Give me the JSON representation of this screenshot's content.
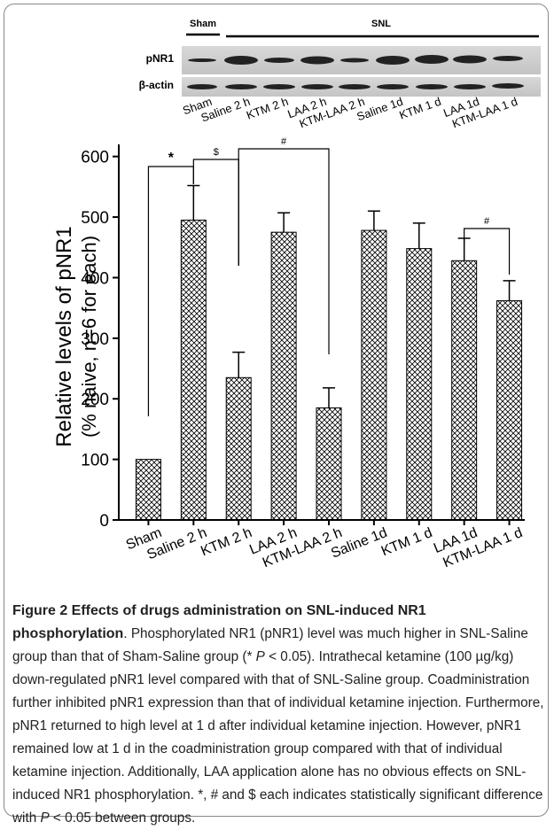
{
  "blot": {
    "group_labels": [
      "Sham",
      "SNL"
    ],
    "row_labels": [
      "pNR1",
      "β-actin"
    ]
  },
  "chart_data": {
    "type": "bar",
    "y_label": [
      "Relative levels of pNR1",
      "(% naive, n=6 for each)"
    ],
    "categories": [
      "Sham",
      "Saline 2 h",
      "KTM 2 h",
      "LAA 2 h",
      "KTM-LAA 2 h",
      "Saline 1d",
      "KTM 1 d",
      "LAA 1d",
      "KTM-LAA 1 d"
    ],
    "values": [
      100,
      495,
      235,
      475,
      185,
      478,
      448,
      428,
      362
    ],
    "errors": [
      null,
      57,
      42,
      32,
      33,
      32,
      42,
      37,
      33
    ],
    "color": "#000000",
    "ylim": [
      0,
      620
    ],
    "yticks": [
      0,
      100,
      200,
      300,
      400,
      500,
      600
    ],
    "annotations": [
      "*",
      "$",
      "#",
      "#"
    ]
  },
  "caption": {
    "title": "Figure 2 Effects of drugs administration on SNL-induced NR1 phosphorylation",
    "body": [
      ". Phosphorylated NR1 (pNR1) level was much higher in SNL-Saline group than that of Sham-Saline group (* ",
      "P",
      " < 0.05). Intrathecal ketamine (100 µg/kg) down-regulated pNR1 level compared with that of SNL-Saline group. Coadministration further inhibited pNR1 expression than that of individual ketamine injection. Furthermore, pNR1 returned to high level at 1 d after individual ketamine injection. However, pNR1 remained low at 1 d in the coadministration group compared with that of individual ketamine injection. Additionally, LAA application alone has no obvious effects on SNL-induced NR1 phosphorylation. *, # and $ each indicates statistically significant difference with ",
      "P",
      " < 0.05 between groups."
    ]
  }
}
